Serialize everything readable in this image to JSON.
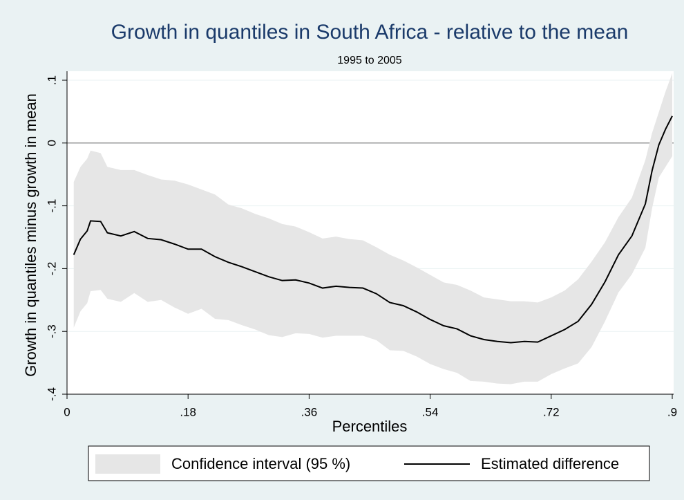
{
  "chart_data": {
    "type": "line",
    "title": "Growth in quantiles in South Africa - relative to the mean",
    "subtitle": "1995 to 2005",
    "x_label": "Percentiles",
    "y_label": "Growth in quantiles minus growth in mean",
    "x": [
      0.01,
      0.02,
      0.03,
      0.035,
      0.05,
      0.06,
      0.08,
      0.1,
      0.12,
      0.14,
      0.16,
      0.18,
      0.2,
      0.22,
      0.24,
      0.26,
      0.28,
      0.3,
      0.32,
      0.34,
      0.36,
      0.38,
      0.4,
      0.42,
      0.44,
      0.46,
      0.48,
      0.5,
      0.52,
      0.54,
      0.56,
      0.58,
      0.6,
      0.62,
      0.64,
      0.66,
      0.68,
      0.7,
      0.72,
      0.74,
      0.76,
      0.78,
      0.8,
      0.82,
      0.84,
      0.86,
      0.87,
      0.88,
      0.89,
      0.9
    ],
    "series": [
      {
        "name": "Confidence interval (95 %)",
        "color": "#e6e6e6",
        "upper": [
          -0.062,
          -0.038,
          -0.025,
          -0.012,
          -0.016,
          -0.038,
          -0.043,
          -0.043,
          -0.051,
          -0.058,
          -0.06,
          -0.066,
          -0.074,
          -0.082,
          -0.098,
          -0.104,
          -0.113,
          -0.12,
          -0.129,
          -0.133,
          -0.142,
          -0.152,
          -0.149,
          -0.153,
          -0.155,
          -0.166,
          -0.178,
          -0.187,
          -0.198,
          -0.21,
          -0.222,
          -0.226,
          -0.235,
          -0.246,
          -0.249,
          -0.252,
          -0.252,
          -0.254,
          -0.246,
          -0.235,
          -0.217,
          -0.189,
          -0.158,
          -0.118,
          -0.087,
          -0.027,
          0.016,
          0.049,
          0.082,
          0.111
        ],
        "lower": [
          -0.294,
          -0.268,
          -0.255,
          -0.236,
          -0.234,
          -0.248,
          -0.253,
          -0.239,
          -0.253,
          -0.25,
          -0.262,
          -0.272,
          -0.264,
          -0.28,
          -0.282,
          -0.29,
          -0.297,
          -0.306,
          -0.309,
          -0.303,
          -0.304,
          -0.31,
          -0.307,
          -0.307,
          -0.307,
          -0.314,
          -0.33,
          -0.331,
          -0.34,
          -0.352,
          -0.36,
          -0.366,
          -0.379,
          -0.38,
          -0.383,
          -0.384,
          -0.38,
          -0.38,
          -0.368,
          -0.359,
          -0.351,
          -0.325,
          -0.284,
          -0.238,
          -0.209,
          -0.167,
          -0.104,
          -0.055,
          -0.038,
          -0.021
        ]
      },
      {
        "name": "Estimated difference",
        "color": "#000000",
        "values": [
          -0.178,
          -0.153,
          -0.14,
          -0.124,
          -0.125,
          -0.143,
          -0.148,
          -0.141,
          -0.152,
          -0.154,
          -0.161,
          -0.169,
          -0.169,
          -0.181,
          -0.19,
          -0.197,
          -0.205,
          -0.213,
          -0.219,
          -0.218,
          -0.223,
          -0.231,
          -0.228,
          -0.23,
          -0.231,
          -0.24,
          -0.254,
          -0.259,
          -0.269,
          -0.281,
          -0.291,
          -0.296,
          -0.307,
          -0.313,
          -0.316,
          -0.318,
          -0.316,
          -0.317,
          -0.307,
          -0.297,
          -0.284,
          -0.257,
          -0.221,
          -0.178,
          -0.148,
          -0.097,
          -0.044,
          -0.003,
          0.022,
          0.043
        ]
      }
    ],
    "xlim": [
      0,
      0.9
    ],
    "xticks": [
      0,
      {
        "value": 0.18,
        "label": ".18"
      },
      {
        "value": 0.36,
        "label": ".36"
      },
      {
        "value": 0.54,
        "label": ".54"
      },
      {
        "value": 0.72,
        "label": ".72"
      },
      {
        "value": 0.9,
        "label": ".9"
      }
    ],
    "ylim": [
      -0.4,
      0.1
    ],
    "yticks": [
      {
        "value": 0.1,
        "label": ".1"
      },
      0,
      {
        "value": -0.1,
        "label": "-.1"
      },
      {
        "value": -0.2,
        "label": "-.2"
      },
      {
        "value": -0.3,
        "label": "-.3"
      },
      {
        "value": -0.4,
        "label": "-.4"
      }
    ],
    "reference_line": 0,
    "grid": true,
    "legend": "bottom"
  }
}
